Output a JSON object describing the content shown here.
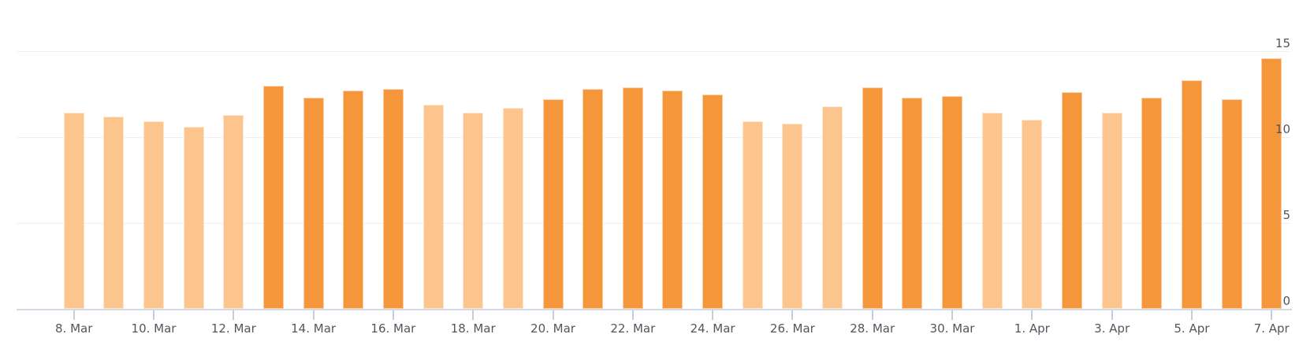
{
  "chart_data": {
    "type": "bar",
    "title": "",
    "xlabel": "",
    "ylabel": "",
    "legend": "none",
    "categories": [
      "8. Mar",
      "9. Mar",
      "10. Mar",
      "11. Mar",
      "12. Mar",
      "13. Mar",
      "14. Mar",
      "15. Mar",
      "16. Mar",
      "17. Mar",
      "18. Mar",
      "19. Mar",
      "20. Mar",
      "21. Mar",
      "22. Mar",
      "23. Mar",
      "24. Mar",
      "25. Mar",
      "26. Mar",
      "27. Mar",
      "28. Mar",
      "29. Mar",
      "30. Mar",
      "31. Mar",
      "1. Apr",
      "2. Apr",
      "3. Apr",
      "4. Apr",
      "5. Apr",
      "6. Apr",
      "7. Apr"
    ],
    "values": [
      11.4,
      11.2,
      10.9,
      10.6,
      11.3,
      13.0,
      12.3,
      12.7,
      12.8,
      11.9,
      11.4,
      11.7,
      12.2,
      12.8,
      12.9,
      12.7,
      12.5,
      10.9,
      10.8,
      11.8,
      12.9,
      12.3,
      12.4,
      11.4,
      11.0,
      12.6,
      11.4,
      12.3,
      13.3,
      12.2,
      14.6
    ],
    "bar_shades": [
      "light",
      "light",
      "light",
      "light",
      "light",
      "dark",
      "dark",
      "dark",
      "dark",
      "light",
      "light",
      "light",
      "dark",
      "dark",
      "dark",
      "dark",
      "dark",
      "light",
      "light",
      "light",
      "dark",
      "dark",
      "dark",
      "light",
      "light",
      "dark",
      "light",
      "dark",
      "dark",
      "dark",
      "dark"
    ],
    "x_axis": {
      "visible_tick_labels": [
        "8. Mar",
        "10. Mar",
        "12. Mar",
        "14. Mar",
        "16. Mar",
        "18. Mar",
        "20. Mar",
        "22. Mar",
        "24. Mar",
        "26. Mar",
        "28. Mar",
        "30. Mar",
        "1. Apr",
        "3. Apr",
        "5. Apr",
        "7. Apr"
      ],
      "label_every_n_bars": 2
    },
    "y_axis": {
      "side": "right",
      "ticks": [
        "0",
        "5",
        "10",
        "15"
      ],
      "min": 0,
      "max": 15,
      "gridlines": true
    },
    "colors": {
      "bar_light": "#fcc58d",
      "bar_dark": "#f6963a",
      "gridline": "#ededed",
      "axis_line": "#d3dae6",
      "tick_mark": "#c4cedf",
      "label_text": "#53565f"
    }
  }
}
